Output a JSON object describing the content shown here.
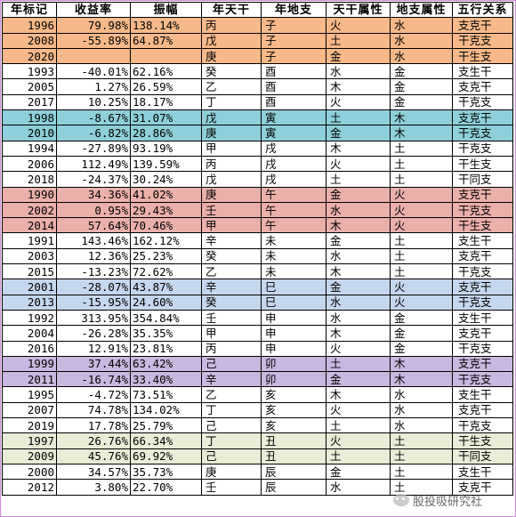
{
  "headers": [
    "年标记",
    "收益率",
    "振幅",
    "年天干",
    "年地支",
    "天干属性",
    "地支属性",
    "五行关系"
  ],
  "rows": [
    {
      "year": "1996",
      "ret": "79.98%",
      "amp": "138.14%",
      "gan": "丙",
      "zhi": "子",
      "gan_attr": "火",
      "zhi_attr": "水",
      "rel": "支克干",
      "hl": "orange"
    },
    {
      "year": "2008",
      "ret": "-55.89%",
      "amp": "64.87%",
      "gan": "戊",
      "zhi": "子",
      "gan_attr": "土",
      "zhi_attr": "水",
      "rel": "干克支",
      "hl": "orange"
    },
    {
      "year": "2020",
      "ret": "",
      "amp": "",
      "gan": "庚",
      "zhi": "子",
      "gan_attr": "金",
      "zhi_attr": "水",
      "rel": "干生支",
      "hl": "orange"
    },
    {
      "year": "1993",
      "ret": "-40.01%",
      "amp": "62.16%",
      "gan": "癸",
      "zhi": "酉",
      "gan_attr": "水",
      "zhi_attr": "金",
      "rel": "支生干",
      "hl": ""
    },
    {
      "year": "2005",
      "ret": "1.27%",
      "amp": "26.59%",
      "gan": "乙",
      "zhi": "酉",
      "gan_attr": "木",
      "zhi_attr": "金",
      "rel": "支克干",
      "hl": ""
    },
    {
      "year": "2017",
      "ret": "10.25%",
      "amp": "18.17%",
      "gan": "丁",
      "zhi": "酉",
      "gan_attr": "火",
      "zhi_attr": "金",
      "rel": "干克支",
      "hl": ""
    },
    {
      "year": "1998",
      "ret": "-8.67%",
      "amp": "31.07%",
      "gan": "戊",
      "zhi": "寅",
      "gan_attr": "土",
      "zhi_attr": "木",
      "rel": "支克干",
      "hl": "teal"
    },
    {
      "year": "2010",
      "ret": "-6.82%",
      "amp": "28.86%",
      "gan": "庚",
      "zhi": "寅",
      "gan_attr": "金",
      "zhi_attr": "木",
      "rel": "干克支",
      "hl": "teal"
    },
    {
      "year": "1994",
      "ret": "-27.89%",
      "amp": "93.19%",
      "gan": "甲",
      "zhi": "戌",
      "gan_attr": "木",
      "zhi_attr": "土",
      "rel": "干克支",
      "hl": ""
    },
    {
      "year": "2006",
      "ret": "112.49%",
      "amp": "139.59%",
      "gan": "丙",
      "zhi": "戌",
      "gan_attr": "火",
      "zhi_attr": "土",
      "rel": "干生支",
      "hl": ""
    },
    {
      "year": "2018",
      "ret": "-24.37%",
      "amp": "30.24%",
      "gan": "戊",
      "zhi": "戌",
      "gan_attr": "土",
      "zhi_attr": "土",
      "rel": "干同支",
      "hl": ""
    },
    {
      "year": "1990",
      "ret": "34.36%",
      "amp": "41.02%",
      "gan": "庚",
      "zhi": "午",
      "gan_attr": "金",
      "zhi_attr": "火",
      "rel": "支克干",
      "hl": "pink"
    },
    {
      "year": "2002",
      "ret": "0.95%",
      "amp": "29.43%",
      "gan": "壬",
      "zhi": "午",
      "gan_attr": "水",
      "zhi_attr": "火",
      "rel": "干克支",
      "hl": "pink"
    },
    {
      "year": "2014",
      "ret": "57.64%",
      "amp": "70.46%",
      "gan": "甲",
      "zhi": "午",
      "gan_attr": "木",
      "zhi_attr": "火",
      "rel": "干生支",
      "hl": "pink"
    },
    {
      "year": "1991",
      "ret": "143.46%",
      "amp": "162.12%",
      "gan": "辛",
      "zhi": "未",
      "gan_attr": "金",
      "zhi_attr": "土",
      "rel": "支生干",
      "hl": ""
    },
    {
      "year": "2003",
      "ret": "12.36%",
      "amp": "25.23%",
      "gan": "癸",
      "zhi": "未",
      "gan_attr": "水",
      "zhi_attr": "土",
      "rel": "支克干",
      "hl": ""
    },
    {
      "year": "2015",
      "ret": "-13.23%",
      "amp": "72.62%",
      "gan": "乙",
      "zhi": "未",
      "gan_attr": "木",
      "zhi_attr": "土",
      "rel": "干克支",
      "hl": ""
    },
    {
      "year": "2001",
      "ret": "-28.07%",
      "amp": "43.87%",
      "gan": "辛",
      "zhi": "巳",
      "gan_attr": "金",
      "zhi_attr": "火",
      "rel": "支克干",
      "hl": "blue"
    },
    {
      "year": "2013",
      "ret": "-15.95%",
      "amp": "24.60%",
      "gan": "癸",
      "zhi": "巳",
      "gan_attr": "水",
      "zhi_attr": "火",
      "rel": "干克支",
      "hl": "blue"
    },
    {
      "year": "1992",
      "ret": "313.95%",
      "amp": "354.84%",
      "gan": "壬",
      "zhi": "申",
      "gan_attr": "水",
      "zhi_attr": "金",
      "rel": "支生干",
      "hl": ""
    },
    {
      "year": "2004",
      "ret": "-26.28%",
      "amp": "35.35%",
      "gan": "甲",
      "zhi": "申",
      "gan_attr": "木",
      "zhi_attr": "金",
      "rel": "支克干",
      "hl": ""
    },
    {
      "year": "2016",
      "ret": "12.91%",
      "amp": "23.81%",
      "gan": "丙",
      "zhi": "申",
      "gan_attr": "火",
      "zhi_attr": "金",
      "rel": "干克支",
      "hl": ""
    },
    {
      "year": "1999",
      "ret": "37.44%",
      "amp": "63.42%",
      "gan": "己",
      "zhi": "卯",
      "gan_attr": "土",
      "zhi_attr": "木",
      "rel": "支克干",
      "hl": "purple"
    },
    {
      "year": "2011",
      "ret": "-16.74%",
      "amp": "33.40%",
      "gan": "辛",
      "zhi": "卯",
      "gan_attr": "金",
      "zhi_attr": "木",
      "rel": "干克支",
      "hl": "purple"
    },
    {
      "year": "1995",
      "ret": "-4.72%",
      "amp": "73.51%",
      "gan": "乙",
      "zhi": "亥",
      "gan_attr": "木",
      "zhi_attr": "水",
      "rel": "支生干",
      "hl": ""
    },
    {
      "year": "2007",
      "ret": "74.78%",
      "amp": "134.02%",
      "gan": "丁",
      "zhi": "亥",
      "gan_attr": "火",
      "zhi_attr": "水",
      "rel": "支克干",
      "hl": ""
    },
    {
      "year": "2019",
      "ret": "17.78%",
      "amp": "25.79%",
      "gan": "己",
      "zhi": "亥",
      "gan_attr": "土",
      "zhi_attr": "水",
      "rel": "干克支",
      "hl": ""
    },
    {
      "year": "1997",
      "ret": "26.76%",
      "amp": "66.34%",
      "gan": "丁",
      "zhi": "丑",
      "gan_attr": "火",
      "zhi_attr": "土",
      "rel": "干生支",
      "hl": "green"
    },
    {
      "year": "2009",
      "ret": "45.76%",
      "amp": "69.92%",
      "gan": "己",
      "zhi": "丑",
      "gan_attr": "土",
      "zhi_attr": "土",
      "rel": "干同支",
      "hl": "green"
    },
    {
      "year": "2000",
      "ret": "34.57%",
      "amp": "35.73%",
      "gan": "庚",
      "zhi": "辰",
      "gan_attr": "金",
      "zhi_attr": "土",
      "rel": "支生干",
      "hl": ""
    },
    {
      "year": "2012",
      "ret": "3.80%",
      "amp": "22.70%",
      "gan": "壬",
      "zhi": "辰",
      "gan_attr": "水",
      "zhi_attr": "土",
      "rel": "支克干",
      "hl": ""
    }
  ],
  "watermark": "股投吸研究社",
  "colors": {
    "orange": "#f7b98a",
    "teal": "#8ecfd9",
    "pink": "#eab0aa",
    "blue": "#c5d7ef",
    "purple": "#c9b8df",
    "green": "#e7edd6",
    "frame": "#d08adb"
  }
}
